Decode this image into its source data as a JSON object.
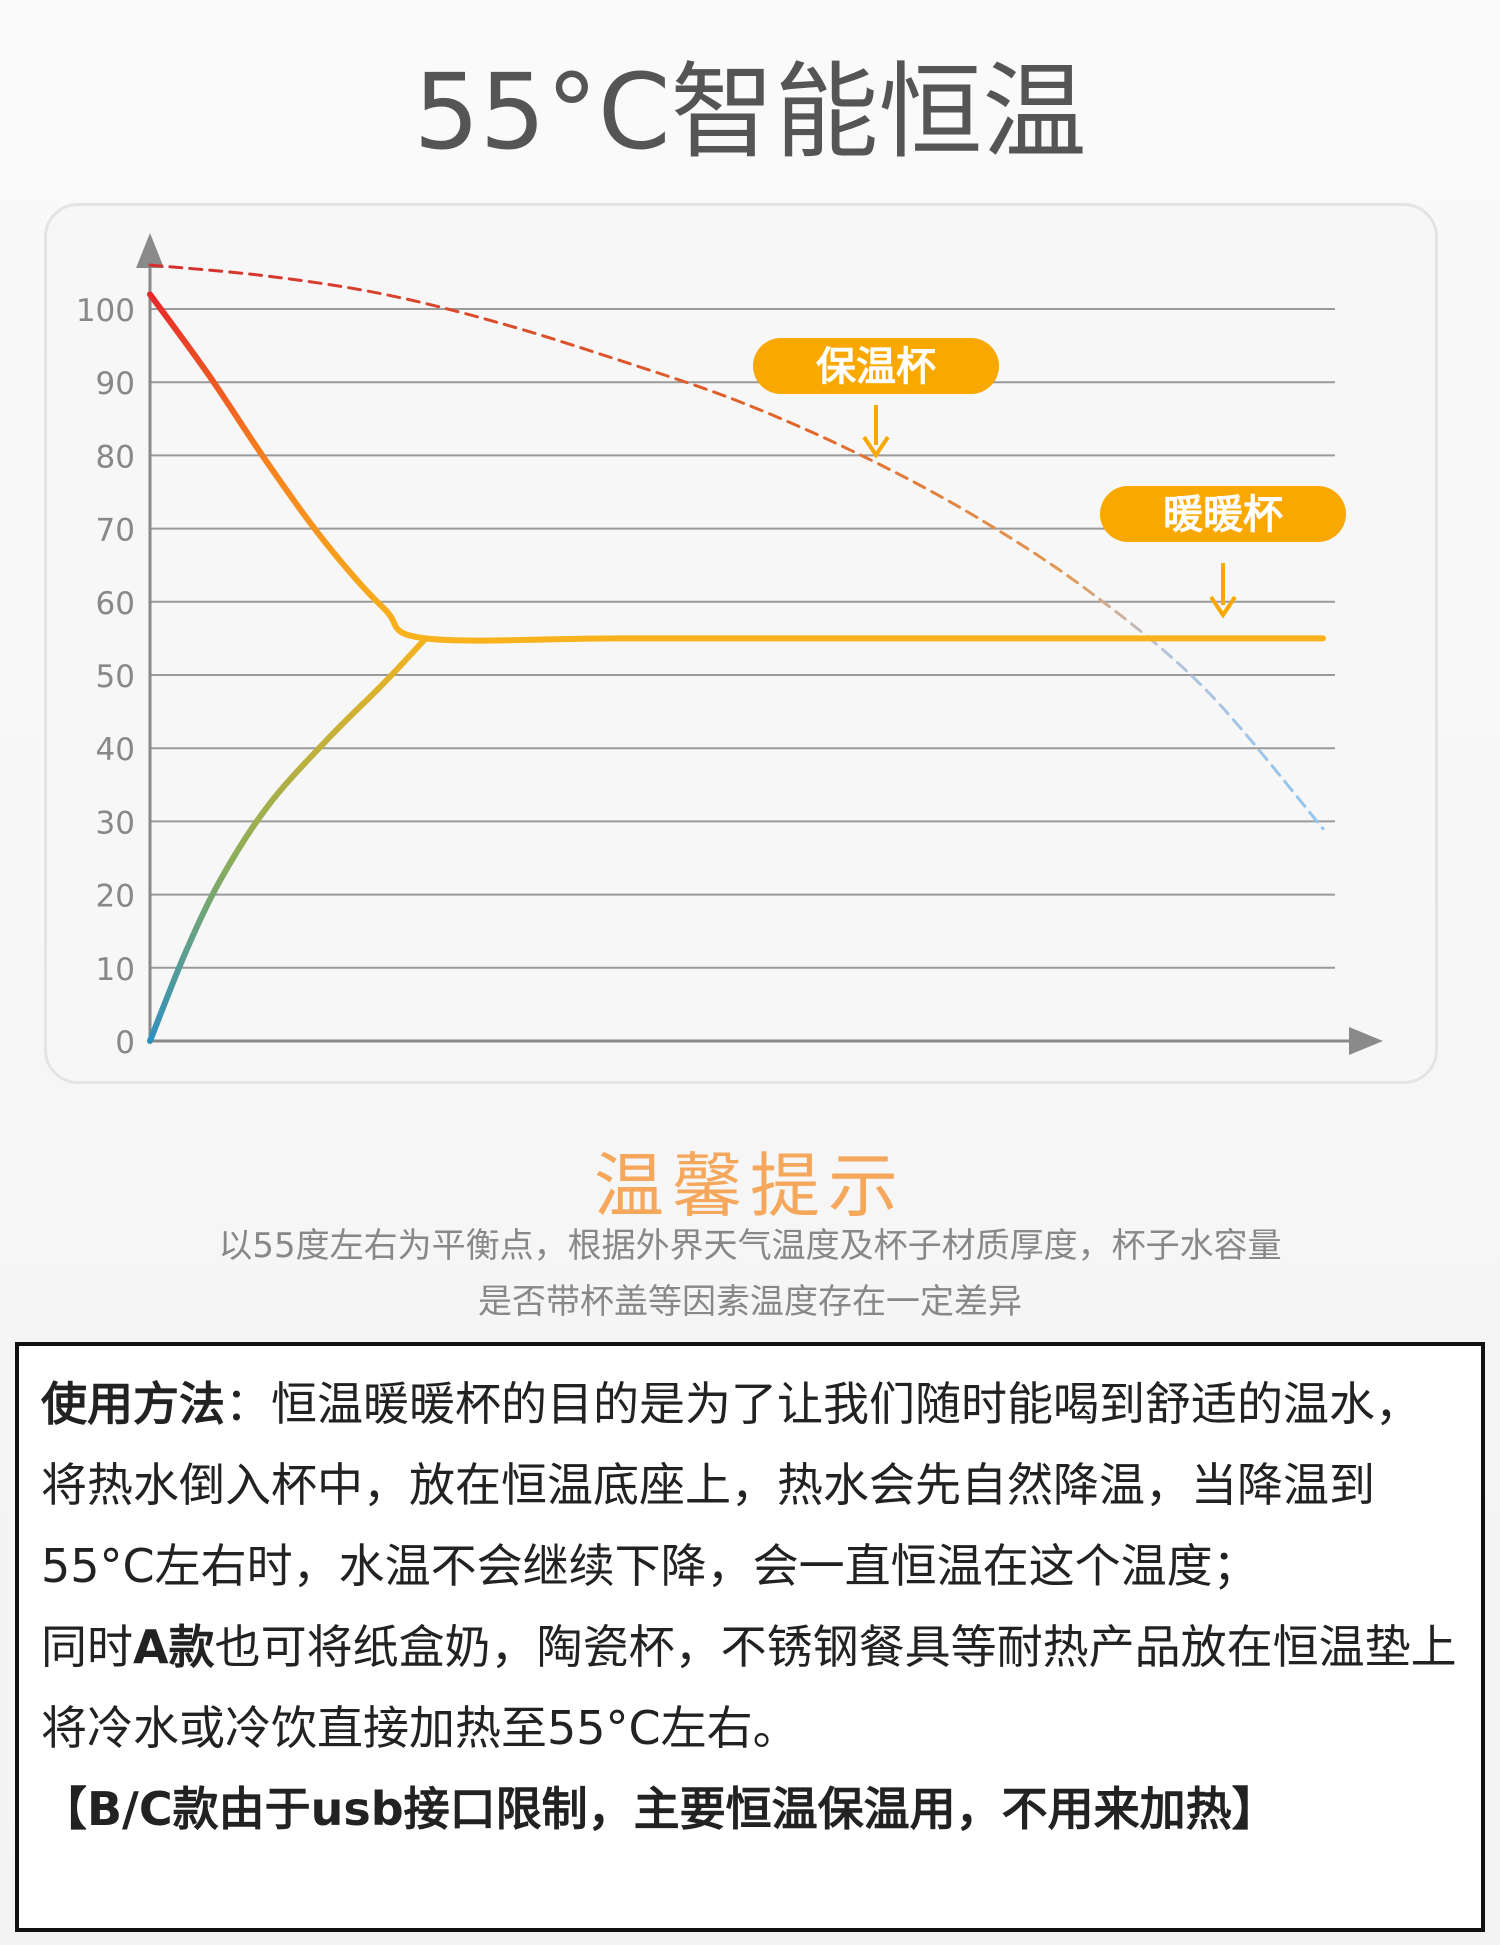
{
  "header": {
    "title": "55°C智能恒温"
  },
  "chart_data": {
    "type": "line",
    "y_ticks": [
      "0",
      "10",
      "20",
      "30",
      "40",
      "50",
      "60",
      "70",
      "80",
      "90",
      "100"
    ],
    "ylim": [
      0,
      105
    ],
    "xlim": [
      0,
      1
    ],
    "grid": true,
    "series": [
      {
        "name": "保温杯",
        "style": "dashed",
        "color": "#d65a2c",
        "color_end": "#9ccaf0",
        "x": [
          0,
          0.1,
          0.2,
          0.3,
          0.4,
          0.5,
          0.6,
          0.7,
          0.8,
          0.9,
          1.0
        ],
        "y": [
          106,
          104.5,
          102,
          98,
          93,
          87.5,
          80.5,
          72,
          61.5,
          48,
          29
        ]
      },
      {
        "name": "暖暖杯",
        "style": "solid",
        "color": "#f8b21c",
        "x": [
          0,
          0.05,
          0.1,
          0.15,
          0.2,
          0.235,
          0.4,
          0.6,
          0.8,
          1.0
        ],
        "y": [
          102,
          91,
          79,
          68,
          59,
          55,
          55,
          55,
          55,
          55
        ]
      },
      {
        "name": "",
        "style": "solid",
        "color": "#3a94b8",
        "color_end": "#f8b21c",
        "x": [
          0,
          0.03,
          0.06,
          0.1,
          0.15,
          0.2,
          0.235
        ],
        "y": [
          0,
          12,
          22,
          32,
          41,
          49,
          55
        ]
      }
    ],
    "annotations": [
      {
        "label": "保温杯",
        "color": "#f8a800",
        "target_x": 0.62,
        "target_y": 79
      },
      {
        "label": "暖暖杯",
        "color": "#f8a800",
        "target_x": 0.92,
        "target_y": 56
      }
    ]
  },
  "tips": {
    "title": "温馨提示",
    "line1": "以55度左右为平衡点，根据外界天气温度及杯子材质厚度，杯子水容量",
    "line2": "是否带杯盖等因素温度存在一定差异"
  },
  "usage": {
    "label": "使用方法",
    "p1": "：恒温暖暖杯的目的是为了让我们随时能喝到舒适的温水，将热水倒入杯中，放在恒温底座上，热水会先自然降温，当降温到55°C左右时，水温不会继续下降，会一直恒温在这个温度；",
    "p2_prefix": "同时",
    "p2_bold": "A款",
    "p2_rest": "也可将纸盒奶，陶瓷杯，不锈钢餐具等耐热产品放在恒温垫上将冷水或冷饮直接加热至55°C左右。",
    "p3": "【B/C款由于usb接口限制，主要恒温保温用，不用来加热】"
  },
  "colors": {
    "title": "#555555",
    "tips_title": "#f5a75c",
    "label_bg": "#f8a800"
  }
}
